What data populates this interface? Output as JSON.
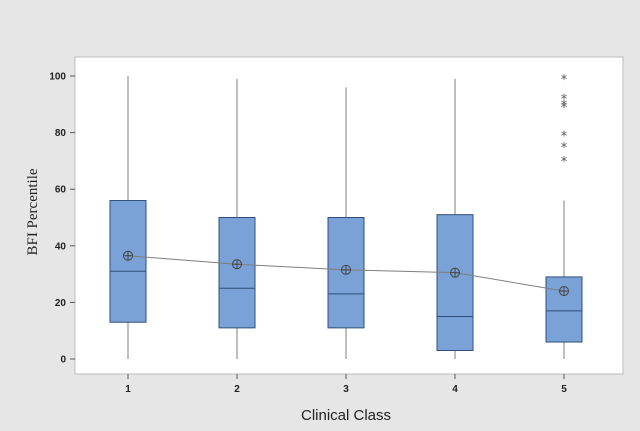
{
  "chart_data": {
    "type": "boxplot",
    "xlabel": "Clinical Class",
    "ylabel": "BFI Percentile",
    "categories": [
      "1",
      "2",
      "3",
      "4",
      "5"
    ],
    "yticks": [
      "0",
      "20",
      "40",
      "60",
      "80",
      "100"
    ],
    "ylim": [
      -4,
      105
    ],
    "grid": false,
    "colors": {
      "figure_bg": "#e6e6e6",
      "plot_bg": "#ffffff",
      "box_fill": "#7aa2d6",
      "box_stroke": "#2f4f7a",
      "whisker": "#7f7f7f",
      "mean_line": "#7f7f7f",
      "outlier": "#555555"
    },
    "boxes": [
      {
        "category": "1",
        "min": 0,
        "q1": 13,
        "median": 31,
        "q3": 56,
        "max": 100,
        "mean": 36.5,
        "outliers": []
      },
      {
        "category": "2",
        "min": 0,
        "q1": 11,
        "median": 25,
        "q3": 50,
        "max": 99,
        "mean": 33.5,
        "outliers": []
      },
      {
        "category": "3",
        "min": 0,
        "q1": 11,
        "median": 23,
        "q3": 50,
        "max": 96,
        "mean": 31.5,
        "outliers": []
      },
      {
        "category": "4",
        "min": 0,
        "q1": 3,
        "median": 15,
        "q3": 51,
        "max": 99,
        "mean": 30.5,
        "outliers": []
      },
      {
        "category": "5",
        "min": 0,
        "q1": 6,
        "median": 17,
        "q3": 29,
        "max": 56,
        "mean": 24,
        "outliers": [
          70,
          75,
          79,
          89,
          90,
          92,
          99
        ]
      }
    ],
    "mean_connect_line": true
  }
}
